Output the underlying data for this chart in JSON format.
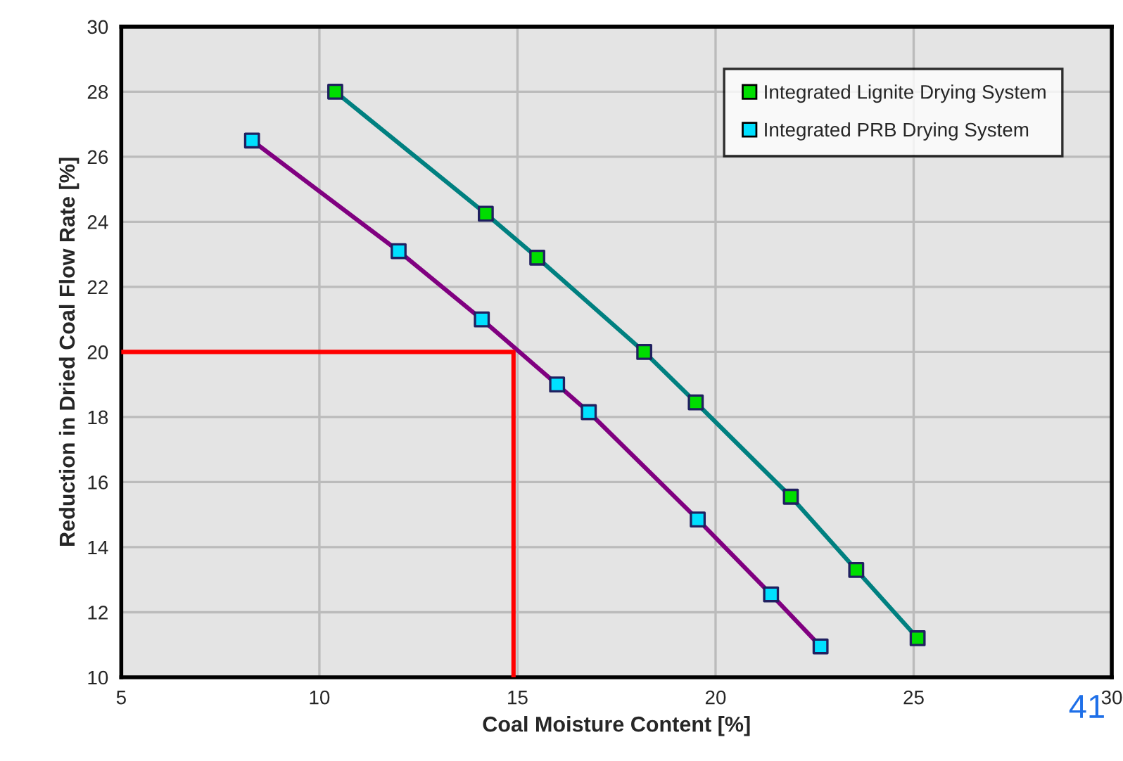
{
  "chart_data": {
    "type": "line",
    "xlabel": "Coal Moisture Content [%]",
    "ylabel": "Reduction in Dried Coal Flow Rate [%]",
    "series": [
      {
        "name": "Integrated Lignite Drying System",
        "color": "#008080",
        "colors": [
          "#00dd00",
          "#00dd00",
          "#00dd00",
          "#00dd00",
          "#00dd00",
          "#00dd00",
          "#00dd00",
          "#00dd00"
        ],
        "marker": "square",
        "x": [
          10.4,
          14.2,
          15.5,
          18.2,
          19.5,
          21.9,
          23.55,
          25.1
        ],
        "values": [
          28.0,
          24.25,
          22.9,
          20.0,
          18.45,
          15.55,
          13.3,
          11.2
        ]
      },
      {
        "name": "Integrated PRB Drying System",
        "color": "#800080",
        "colors": [
          "#00e0ff",
          "#00e0ff",
          "#00e0ff",
          "#00e0ff",
          "#00e0ff",
          "#00e0ff",
          "#00e0ff",
          "#00e0ff"
        ],
        "marker": "square",
        "x": [
          8.3,
          12.0,
          14.1,
          16.0,
          16.8,
          19.55,
          21.4,
          22.65
        ],
        "values": [
          26.5,
          23.1,
          21.0,
          19.0,
          18.15,
          14.85,
          12.55,
          10.95
        ]
      },
      {
        "color": "#ff0000",
        "marker": "none",
        "x": [
          5,
          14.9,
          14.9
        ],
        "values": [
          20,
          20,
          10
        ]
      }
    ],
    "xlim": [
      5,
      30
    ],
    "ylim": [
      10,
      30
    ],
    "xticks": [
      5,
      10,
      15,
      20,
      25,
      30
    ],
    "yticks": [
      10,
      12,
      14,
      16,
      18,
      20,
      22,
      24,
      26,
      28,
      30
    ],
    "grid": true,
    "legend": "top right",
    "annotations": [
      "41"
    ]
  }
}
